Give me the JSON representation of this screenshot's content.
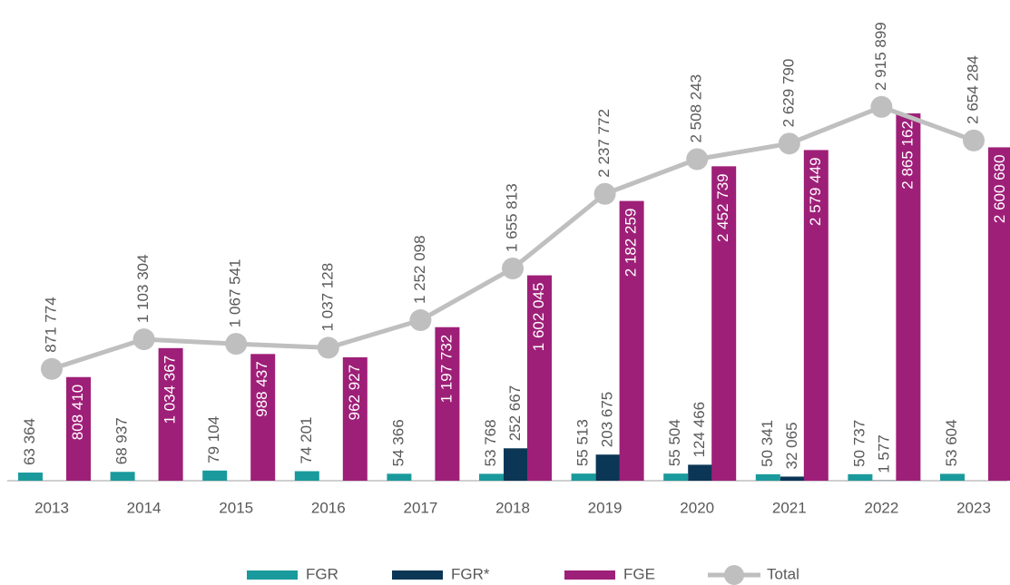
{
  "chart_data": {
    "type": "bar",
    "categories": [
      "2013",
      "2014",
      "2015",
      "2016",
      "2017",
      "2018",
      "2019",
      "2020",
      "2021",
      "2022",
      "2023"
    ],
    "ylim": [
      0,
      3750000
    ],
    "legend": "bottom",
    "series": [
      {
        "name": "FGR",
        "color": "#1a9a9c",
        "values": [
          63364,
          68937,
          79104,
          74201,
          54366,
          53768,
          55513,
          55504,
          50341,
          50737,
          53604
        ],
        "value_labels": [
          "63 364",
          "68 937",
          "79 104",
          "74 201",
          "54 366",
          "53 768",
          "55 513",
          "55 504",
          "50 341",
          "50 737",
          "53 604"
        ]
      },
      {
        "name": "FGR*",
        "color": "#0b3656",
        "values": [
          null,
          null,
          null,
          null,
          null,
          252667,
          203675,
          124466,
          32065,
          1577,
          null
        ],
        "value_labels": [
          null,
          null,
          null,
          null,
          null,
          "252 667",
          "203 675",
          "124 466",
          "32 065",
          "1 577",
          null
        ]
      },
      {
        "name": "FGE",
        "color": "#9e1f78",
        "values": [
          808410,
          1034367,
          988437,
          962927,
          1197732,
          1602045,
          2182259,
          2452739,
          2579449,
          2865162,
          2600680
        ],
        "value_labels": [
          "808 410",
          "1 034 367",
          "988 437",
          "962 927",
          "1 197 732",
          "1 602 045",
          "2 182 259",
          "2 452 739",
          "2 579 449",
          "2 865 162",
          "2 600 680"
        ]
      },
      {
        "name": "Total",
        "color": "#bfbfbf",
        "type": "line",
        "values": [
          871774,
          1103304,
          1067541,
          1037128,
          1252098,
          1655813,
          2237772,
          2508243,
          2629790,
          2915899,
          2654284
        ],
        "value_labels": [
          "871 774",
          "1 103 304",
          "1 067 541",
          "1 037 128",
          "1 252 098",
          "1 655 813",
          "2 237 772",
          "2 508 243",
          "2 629 790",
          "2 915 899",
          "2 654 284"
        ]
      }
    ]
  }
}
